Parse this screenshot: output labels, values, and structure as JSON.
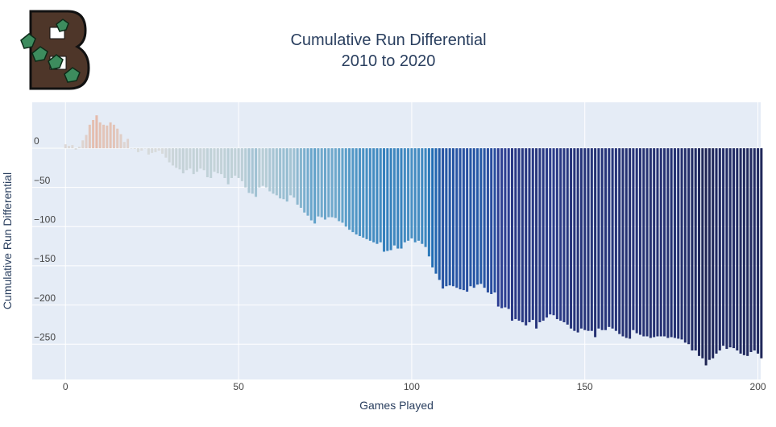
{
  "chart_data": {
    "type": "bar",
    "title": "Cumulative Run Differential",
    "subtitle": "2010 to 2020",
    "xlabel": "Games Played",
    "ylabel": "Cumulative Run Differential",
    "x": [
      0,
      1,
      2,
      3,
      4,
      5,
      6,
      7,
      8,
      9,
      10,
      11,
      12,
      13,
      14,
      15,
      16,
      17,
      18,
      19,
      20,
      21,
      22,
      23,
      24,
      25,
      26,
      27,
      28,
      29,
      30,
      31,
      32,
      33,
      34,
      35,
      36,
      37,
      38,
      39,
      40,
      41,
      42,
      43,
      44,
      45,
      46,
      47,
      48,
      49,
      50,
      51,
      52,
      53,
      54,
      55,
      56,
      57,
      58,
      59,
      60,
      61,
      62,
      63,
      64,
      65,
      66,
      67,
      68,
      69,
      70,
      71,
      72,
      73,
      74,
      75,
      76,
      77,
      78,
      79,
      80,
      81,
      82,
      83,
      84,
      85,
      86,
      87,
      88,
      89,
      90,
      91,
      92,
      93,
      94,
      95,
      96,
      97,
      98,
      99,
      100,
      101,
      102,
      103,
      104,
      105,
      106,
      107,
      108,
      109,
      110,
      111,
      112,
      113,
      114,
      115,
      116,
      117,
      118,
      119,
      120,
      121,
      122,
      123,
      124,
      125,
      126,
      127,
      128,
      129,
      130,
      131,
      132,
      133,
      134,
      135,
      136,
      137,
      138,
      139,
      140,
      141,
      142,
      143,
      144,
      145,
      146,
      147,
      148,
      149,
      150,
      151,
      152,
      153,
      154,
      155,
      156,
      157,
      158,
      159,
      160,
      161,
      162,
      163,
      164,
      165,
      166,
      167,
      168,
      169,
      170,
      171,
      172,
      173,
      174,
      175,
      176,
      177,
      178,
      179,
      180,
      181,
      182,
      183,
      184,
      185,
      186,
      187,
      188,
      189,
      190,
      191,
      192,
      193,
      194,
      195,
      196,
      197,
      198,
      199,
      200,
      201
    ],
    "values": [
      5,
      3,
      4,
      -2,
      2,
      10,
      17,
      30,
      36,
      42,
      33,
      30,
      29,
      33,
      30,
      25,
      18,
      8,
      12,
      0,
      -1,
      -5,
      -3,
      0,
      -8,
      -6,
      -5,
      -3,
      -7,
      -12,
      -18,
      -22,
      -25,
      -27,
      -32,
      -28,
      -26,
      -33,
      -30,
      -26,
      -28,
      -37,
      -38,
      -30,
      -32,
      -33,
      -38,
      -46,
      -38,
      -35,
      -38,
      -42,
      -50,
      -57,
      -58,
      -62,
      -50,
      -48,
      -50,
      -55,
      -58,
      -60,
      -64,
      -65,
      -68,
      -60,
      -63,
      -72,
      -76,
      -82,
      -86,
      -92,
      -96,
      -87,
      -88,
      -91,
      -88,
      -88,
      -89,
      -93,
      -95,
      -100,
      -104,
      -107,
      -110,
      -112,
      -114,
      -116,
      -118,
      -120,
      -122,
      -120,
      -132,
      -131,
      -130,
      -124,
      -128,
      -128,
      -120,
      -118,
      -115,
      -120,
      -118,
      -122,
      -126,
      -138,
      -152,
      -160,
      -168,
      -179,
      -176,
      -175,
      -176,
      -178,
      -180,
      -181,
      -183,
      -176,
      -178,
      -174,
      -173,
      -178,
      -184,
      -186,
      -184,
      -202,
      -204,
      -203,
      -205,
      -220,
      -218,
      -220,
      -222,
      -226,
      -222,
      -219,
      -230,
      -222,
      -220,
      -216,
      -212,
      -213,
      -218,
      -220,
      -222,
      -225,
      -230,
      -233,
      -235,
      -230,
      -232,
      -233,
      -233,
      -241,
      -230,
      -232,
      -232,
      -228,
      -230,
      -233,
      -237,
      -240,
      -242,
      -243,
      -232,
      -236,
      -238,
      -240,
      -240,
      -242,
      -241,
      -240,
      -240,
      -240,
      -242,
      -241,
      -242,
      -243,
      -244,
      -248,
      -250,
      -258,
      -258,
      -265,
      -268,
      -277,
      -270,
      -268,
      -262,
      -258,
      -252,
      -256,
      -254,
      -255,
      -258,
      -262,
      -264,
      -265,
      -260,
      -258,
      -262,
      -268
    ],
    "colorscale": [
      [
        -280,
        "#1e2450"
      ],
      [
        -200,
        "#2d3f95"
      ],
      [
        -150,
        "#1f6fb5"
      ],
      [
        -100,
        "#5a9ec9"
      ],
      [
        -50,
        "#b6cdd6"
      ],
      [
        0,
        "#dcdcdc"
      ],
      [
        45,
        "#e6b8a6"
      ]
    ],
    "xlim": [
      -9.6,
      200.8
    ],
    "ylim": [
      -295,
      58.6
    ],
    "xticks": [
      0,
      50,
      100,
      150,
      200
    ],
    "yticks": [
      0,
      {
        "value": -50,
        "label": "−50"
      },
      {
        "value": -100,
        "label": "−100"
      },
      {
        "value": -150,
        "label": "−150"
      },
      {
        "value": -200,
        "label": "−200"
      },
      {
        "value": -250,
        "label": "−250"
      }
    ],
    "grid": true
  }
}
